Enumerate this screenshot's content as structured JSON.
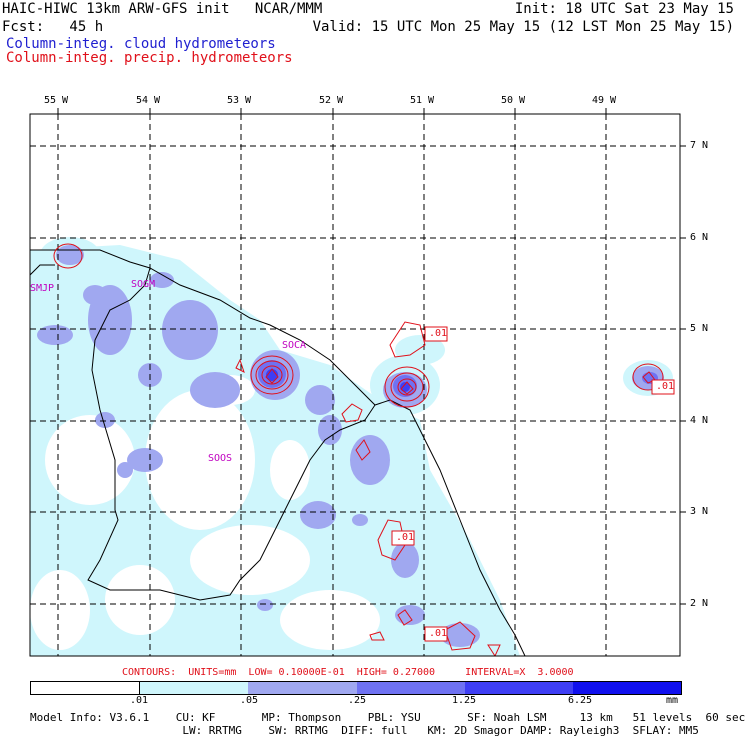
{
  "header": {
    "line1_left": "HAIC-HIWC 13km ARW-GFS init   NCAR/MMM",
    "line1_right": "Init: 18 UTC Sat 23 May 15",
    "line2_left": "Fcst:   45 h",
    "line2_right": "Valid: 15 UTC Mon 25 May 15 (12 LST Mon 25 May 15)",
    "field_cloud": "Column-integ. cloud hydrometeors",
    "field_precip": "Column-integ. precip. hydrometeors"
  },
  "axes": {
    "lon_labels": [
      "55 W",
      "54 W",
      "53 W",
      "52 W",
      "51 W",
      "50 W",
      "49 W"
    ],
    "lat_labels": [
      "7 N",
      "6 N",
      "5 N",
      "4 N",
      "3 N",
      "2 N"
    ]
  },
  "stations": [
    "SMJP",
    "SOGM",
    "SOCA",
    "SOOS"
  ],
  "contour_labels": [
    ".01",
    ".01",
    ".01",
    ".01"
  ],
  "contour_info": "CONTOURS:  UNITS=mm  LOW= 0.10000E-01  HIGH= 0.27000     INTERVAL=X  3.0000",
  "legend": {
    "labels": [
      ".01",
      ".05",
      ".25",
      "1.25",
      "6.25",
      "mm"
    ],
    "colors": [
      "#ffffff",
      "#cff6fc",
      "#a0a8f0",
      "#6f72f2",
      "#3e3ef4",
      "#1010ee"
    ]
  },
  "model_info": {
    "line1": "Model Info: V3.6.1    CU: KF       MP: Thompson    PBL: YSU       SF: Noah LSM     13 km   51 levels  60 sec",
    "line2": "                       LW: RRTMG    SW: RRTMG  DIFF: full   KM: 2D Smagor DAMP: Rayleigh3  SFLAY: MM5"
  }
}
